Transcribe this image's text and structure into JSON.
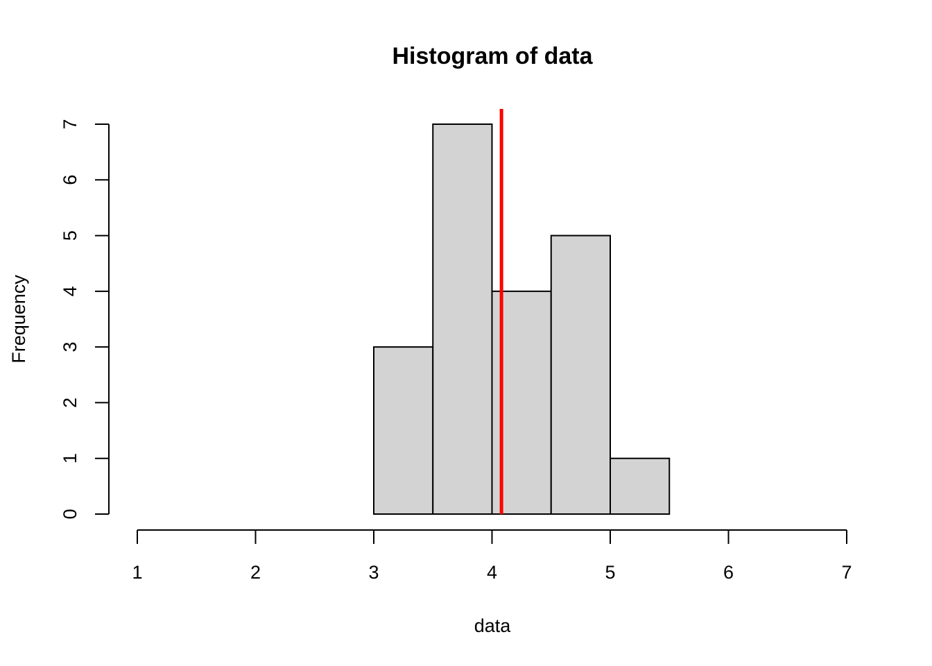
{
  "chart_data": {
    "type": "bar",
    "title": "Histogram of data",
    "xlabel": "data",
    "ylabel": "Frequency",
    "xlim": [
      1,
      7
    ],
    "ylim": [
      0,
      7
    ],
    "x_ticks": [
      "1",
      "2",
      "3",
      "4",
      "5",
      "6",
      "7"
    ],
    "y_ticks": [
      "0",
      "1",
      "2",
      "3",
      "4",
      "5",
      "6",
      "7"
    ],
    "bins": [
      {
        "from": 3.0,
        "to": 3.5,
        "count": 3
      },
      {
        "from": 3.5,
        "to": 4.0,
        "count": 7
      },
      {
        "from": 4.0,
        "to": 4.5,
        "count": 4
      },
      {
        "from": 4.5,
        "to": 5.0,
        "count": 5
      },
      {
        "from": 5.0,
        "to": 5.5,
        "count": 1
      }
    ],
    "vline": {
      "x": 4.08,
      "color": "#ff0000"
    },
    "bar_fill": "#d3d3d3",
    "grid": false
  }
}
